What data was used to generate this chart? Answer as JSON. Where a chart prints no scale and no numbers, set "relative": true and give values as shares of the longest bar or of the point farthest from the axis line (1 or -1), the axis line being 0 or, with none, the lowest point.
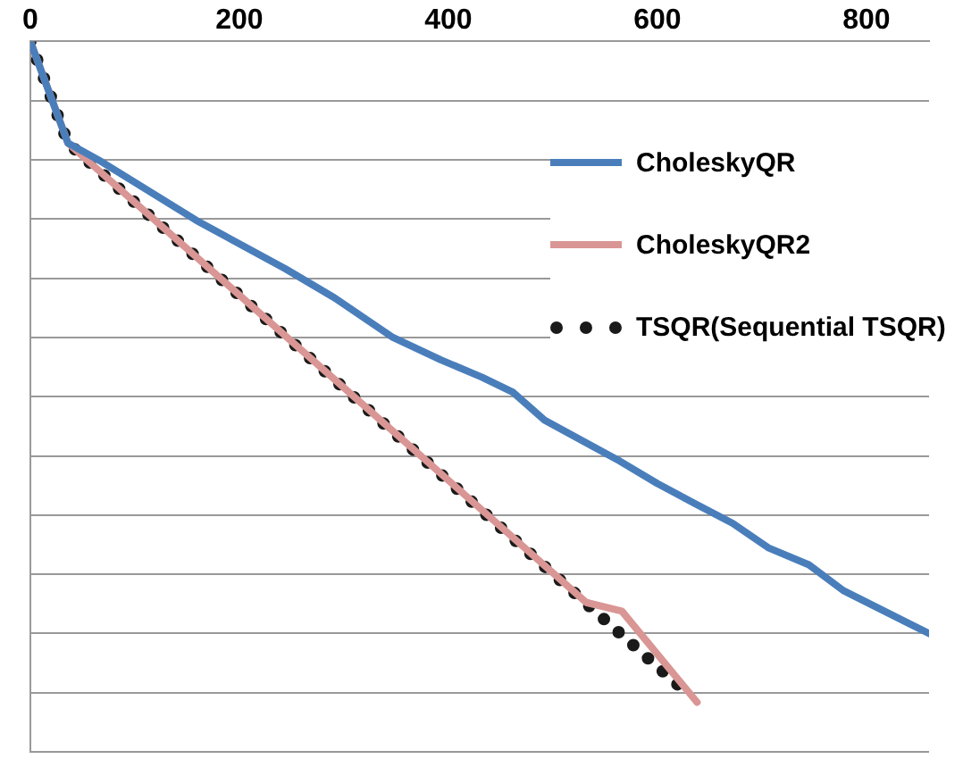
{
  "chart_data": {
    "type": "line",
    "relative": true,
    "xlim": [
      0,
      860
    ],
    "xticks": [
      0,
      200,
      400,
      600,
      800
    ],
    "grid": "y",
    "legend": "right",
    "marker": "none",
    "tick_labels": "x",
    "series": [
      {
        "name": "CholeskyQR",
        "color": "#4a7ebb",
        "line_style": "solid",
        "x": [
          0,
          36,
          68,
          159,
          244,
          291,
          347,
          393,
          432,
          462,
          492,
          564,
          600,
          638,
          672,
          706,
          745,
          778,
          860
        ],
        "values": [
          0,
          -0.154,
          -0.182,
          -0.271,
          -0.344,
          -0.388,
          -0.448,
          -0.482,
          -0.508,
          -0.531,
          -0.573,
          -0.635,
          -0.669,
          -0.701,
          -0.729,
          -0.766,
          -0.792,
          -0.831,
          -0.896
        ]
      },
      {
        "name": "CholeskyQR2",
        "color": "#d99694",
        "line_style": "solid",
        "x": [
          0,
          36,
          532,
          566,
          638
        ],
        "values": [
          0,
          -0.154,
          -0.849,
          -0.862,
          -1
        ]
      },
      {
        "name": "TSQR(Sequential TSQR)",
        "color": "#1a1a1a",
        "line_style": "dotted",
        "x": [
          0,
          36,
          620
        ],
        "values": [
          0,
          -0.154,
          -0.974
        ]
      }
    ]
  }
}
